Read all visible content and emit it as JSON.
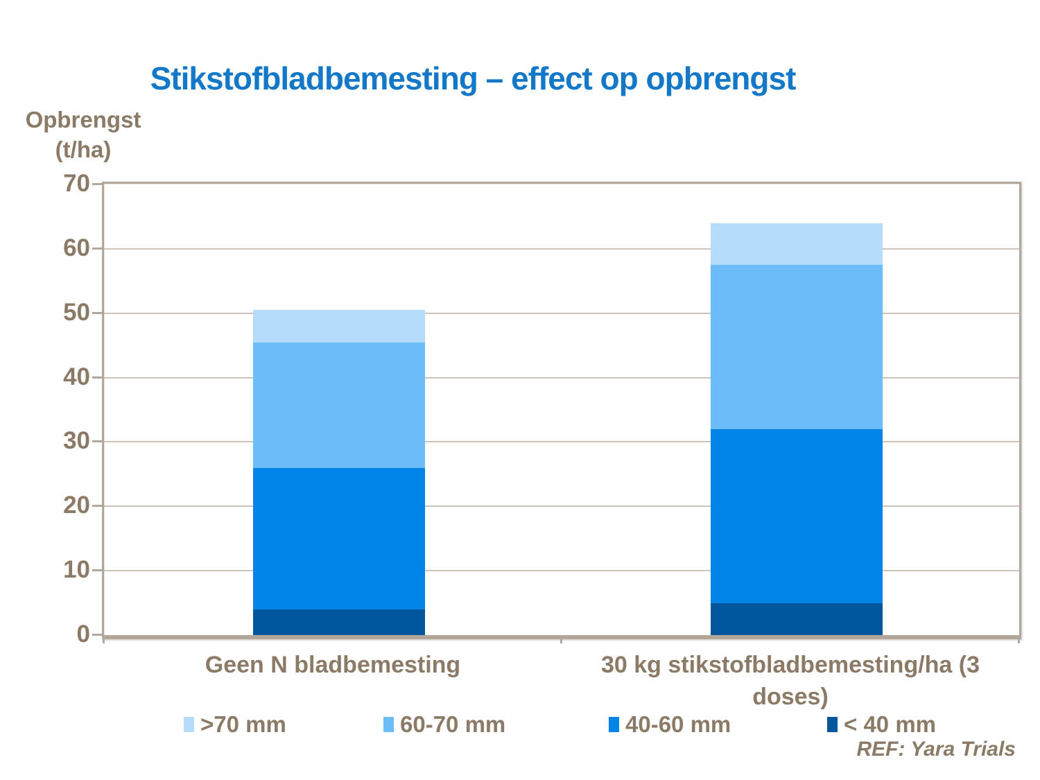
{
  "title": "Stikstofbladbemesting – effect op opbrengst",
  "y_axis": {
    "label_line1": "Opbrengst",
    "label_line2": "(t/ha)"
  },
  "source": "REF: Yara Trials",
  "colors": {
    "title_blue": "#1478c8",
    "body_text": "#8a7a66",
    "axis_border": "#b2a79a",
    "gridline": "#cdc3b8"
  },
  "chart_data": {
    "type": "bar",
    "stacked": true,
    "title": "Stikstofbladbemesting – effect op opbrengst",
    "ylabel": "Opbrengst (t/ha)",
    "xlabel": "",
    "ylim": [
      0,
      70
    ],
    "yticks": [
      0,
      10,
      20,
      30,
      40,
      50,
      60,
      70
    ],
    "grid": true,
    "legend_position": "bottom",
    "categories": [
      "Geen N bladbemesting",
      "30 kg stikstofbladbemesting/ha (3 doses)"
    ],
    "series": [
      {
        "name": "< 40 mm",
        "color": "#00579c",
        "values": [
          4,
          5
        ]
      },
      {
        "name": "40-60 mm",
        "color": "#0084e8",
        "values": [
          22,
          27
        ]
      },
      {
        "name": "60-70 mm",
        "color": "#6abdf9",
        "values": [
          19.5,
          25.5
        ]
      },
      {
        "name": ">70 mm",
        "color": "#b5dcfb",
        "values": [
          5,
          6.5
        ]
      }
    ],
    "totals": [
      50.5,
      64
    ],
    "legend_order": [
      ">70 mm",
      "60-70 mm",
      "40-60 mm",
      "< 40 mm"
    ]
  }
}
